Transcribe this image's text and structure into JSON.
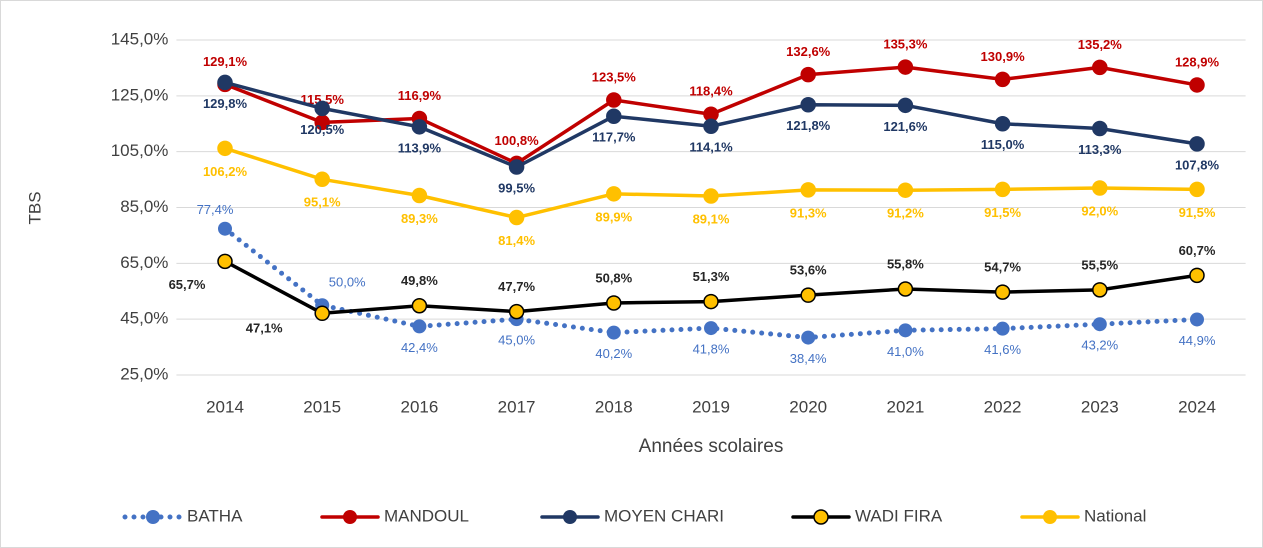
{
  "chart_data": {
    "type": "line",
    "categories": [
      "2014",
      "2015",
      "2016",
      "2017",
      "2018",
      "2019",
      "2020",
      "2021",
      "2022",
      "2023",
      "2024"
    ],
    "y_label": "TBS",
    "x_label": "Années scolaires",
    "ylim": [
      25,
      145
    ],
    "yticks": [
      {
        "value": 25,
        "label": "25,0%"
      },
      {
        "value": 45,
        "label": "45,0%"
      },
      {
        "value": 65,
        "label": "65,0%"
      },
      {
        "value": 85,
        "label": "85,0%"
      },
      {
        "value": 105,
        "label": "105,0%"
      },
      {
        "value": 125,
        "label": "125,0%"
      },
      {
        "value": 145,
        "label": "145,0%"
      }
    ],
    "grid": true,
    "legend": "bottom",
    "series": [
      {
        "name": "BATHA",
        "color": "#4472c4",
        "dotted": true,
        "values": [
          77.4,
          50.0,
          42.4,
          45.0,
          40.2,
          41.8,
          38.4,
          41.0,
          41.6,
          43.2,
          44.9
        ],
        "value_labels": [
          "77,4%",
          "50,0%",
          "42,4%",
          "45,0%",
          "40,2%",
          "41,8%",
          "38,4%",
          "41,0%",
          "41,6%",
          "43,2%",
          "44,9%"
        ]
      },
      {
        "name": "MANDOUL",
        "color": "#c00000",
        "values": [
          129.1,
          115.5,
          116.9,
          100.8,
          123.5,
          118.4,
          132.6,
          135.3,
          130.9,
          135.2,
          128.9
        ],
        "value_labels": [
          "129,1%",
          "115,5%",
          "116,9%",
          "100,8%",
          "123,5%",
          "118,4%",
          "132,6%",
          "135,3%",
          "130,9%",
          "135,2%",
          "128,9%"
        ]
      },
      {
        "name": "MOYEN CHARI",
        "color": "#203864",
        "values": [
          129.8,
          120.5,
          113.9,
          99.5,
          117.7,
          114.1,
          121.8,
          121.6,
          115.0,
          113.3,
          107.8
        ],
        "value_labels": [
          "129,8%",
          "120,5%",
          "113,9%",
          "99,5%",
          "117,7%",
          "114,1%",
          "121,8%",
          "121,6%",
          "115,0%",
          "113,3%",
          "107,8%"
        ]
      },
      {
        "name": "WADI FIRA",
        "color": "#000000",
        "marker_color": "#ffc000",
        "values": [
          65.7,
          47.1,
          49.8,
          47.7,
          50.8,
          51.3,
          53.6,
          55.8,
          54.7,
          55.5,
          60.7
        ],
        "value_labels": [
          "65,7%",
          "47,1%",
          "49,8%",
          "47,7%",
          "50,8%",
          "51,3%",
          "53,6%",
          "55,8%",
          "54,7%",
          "55,5%",
          "60,7%"
        ]
      },
      {
        "name": "National",
        "color": "#ffc000",
        "values": [
          106.2,
          95.1,
          89.3,
          81.4,
          89.9,
          89.1,
          91.3,
          91.2,
          91.5,
          92.0,
          91.5
        ],
        "value_labels": [
          "106,2%",
          "95,1%",
          "89,3%",
          "81,4%",
          "89,9%",
          "89,1%",
          "91,3%",
          "91,2%",
          "91,5%",
          "92,0%",
          "91,5%"
        ]
      }
    ]
  }
}
